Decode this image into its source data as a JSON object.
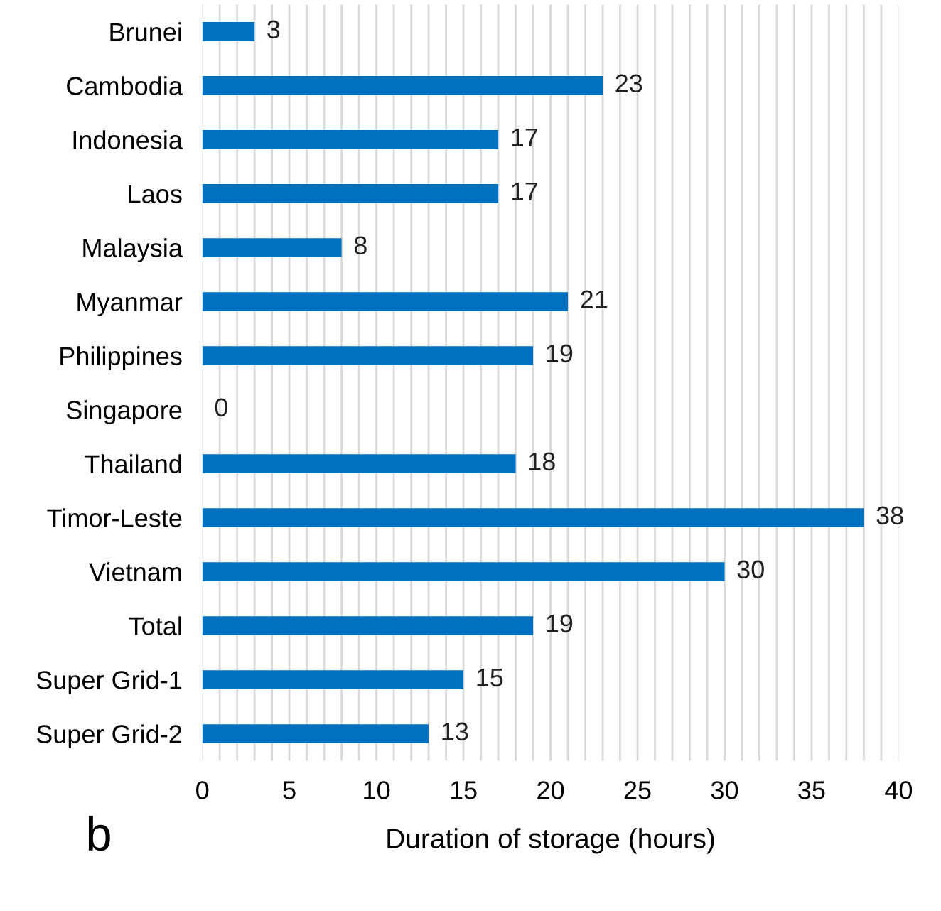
{
  "chart_data": {
    "type": "bar",
    "orientation": "horizontal",
    "categories": [
      "Brunei",
      "Cambodia",
      "Indonesia",
      "Laos",
      "Malaysia",
      "Myanmar",
      "Philippines",
      "Singapore",
      "Thailand",
      "Timor-Leste",
      "Vietnam",
      "Total",
      "Super Grid-1",
      "Super Grid-2"
    ],
    "values": [
      3,
      23,
      17,
      17,
      8,
      21,
      19,
      0,
      18,
      38,
      30,
      19,
      15,
      13
    ],
    "color": "#0070c0",
    "data_labels": true,
    "xlabel": "Duration of storage (hours)",
    "annotations": [
      "b"
    ],
    "xlim": [
      0,
      40
    ],
    "xticks": [
      0,
      {
        "value": 1,
        "label": null
      },
      {
        "value": 2,
        "label": null
      },
      {
        "value": 3,
        "label": null
      },
      {
        "value": 4,
        "label": null
      },
      5,
      {
        "value": 6,
        "label": null
      },
      {
        "value": 7,
        "label": null
      },
      {
        "value": 8,
        "label": null
      },
      {
        "value": 9,
        "label": null
      },
      10,
      {
        "value": 11,
        "label": null
      },
      {
        "value": 12,
        "label": null
      },
      {
        "value": 13,
        "label": null
      },
      {
        "value": 14,
        "label": null
      },
      15,
      {
        "value": 16,
        "label": null
      },
      {
        "value": 17,
        "label": null
      },
      {
        "value": 18,
        "label": null
      },
      {
        "value": 19,
        "label": null
      },
      20,
      {
        "value": 21,
        "label": null
      },
      {
        "value": 22,
        "label": null
      },
      {
        "value": 23,
        "label": null
      },
      {
        "value": 24,
        "label": null
      },
      25,
      {
        "value": 26,
        "label": null
      },
      {
        "value": 27,
        "label": null
      },
      {
        "value": 28,
        "label": null
      },
      {
        "value": 29,
        "label": null
      },
      30,
      {
        "value": 31,
        "label": null
      },
      {
        "value": 32,
        "label": null
      },
      {
        "value": 33,
        "label": null
      },
      {
        "value": 34,
        "label": null
      },
      35,
      {
        "value": 36,
        "label": null
      },
      {
        "value": 37,
        "label": null
      },
      {
        "value": 38,
        "label": null
      },
      {
        "value": 39,
        "label": null
      },
      40
    ],
    "grid": "x"
  }
}
